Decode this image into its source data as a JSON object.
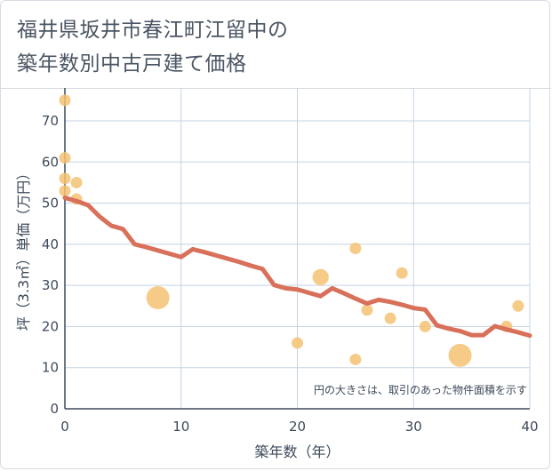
{
  "title_lines": [
    "福井県坂井市春江町江留中の",
    "築年数別中古戸建て価格"
  ],
  "note": "円の大きさは、取引のあった物件面積を示す",
  "colors": {
    "bubble": "#f5c273",
    "line": "#d8705a",
    "grid": "#c5d3e3",
    "axis": "#3d4a5a"
  },
  "chart_data": {
    "type": "scatter",
    "title": "福井県坂井市春江町江留中の築年数別中古戸建て価格",
    "xlabel": "築年数（年）",
    "ylabel": "坪（3.3㎡）単価（万円）",
    "xlim": [
      0,
      40
    ],
    "ylim": [
      0,
      78
    ],
    "xticks": [
      0,
      10,
      20,
      30,
      40
    ],
    "yticks": [
      0,
      10,
      20,
      30,
      40,
      50,
      60,
      70
    ],
    "grid": true,
    "series": [
      {
        "kind": "bubble",
        "points": [
          {
            "x": 0,
            "y": 75,
            "size": 1
          },
          {
            "x": 0,
            "y": 61,
            "size": 1
          },
          {
            "x": 0,
            "y": 56,
            "size": 1
          },
          {
            "x": 0,
            "y": 53,
            "size": 1
          },
          {
            "x": 1,
            "y": 55,
            "size": 1
          },
          {
            "x": 1,
            "y": 51,
            "size": 1
          },
          {
            "x": 8,
            "y": 27,
            "size": 4
          },
          {
            "x": 20,
            "y": 16,
            "size": 1
          },
          {
            "x": 22,
            "y": 32,
            "size": 2
          },
          {
            "x": 25,
            "y": 39,
            "size": 1
          },
          {
            "x": 25,
            "y": 12,
            "size": 1
          },
          {
            "x": 26,
            "y": 24,
            "size": 1
          },
          {
            "x": 28,
            "y": 22,
            "size": 1
          },
          {
            "x": 29,
            "y": 33,
            "size": 1
          },
          {
            "x": 31,
            "y": 20,
            "size": 1
          },
          {
            "x": 34,
            "y": 13,
            "size": 4
          },
          {
            "x": 38,
            "y": 20,
            "size": 1
          },
          {
            "x": 39,
            "y": 25,
            "size": 1
          }
        ]
      },
      {
        "kind": "line",
        "x": [
          0,
          1,
          2,
          3,
          4,
          5,
          6,
          7,
          8,
          9,
          10,
          11,
          12,
          13,
          14,
          15,
          16,
          17,
          18,
          19,
          20,
          21,
          22,
          23,
          24,
          25,
          26,
          27,
          28,
          29,
          30,
          31,
          32,
          33,
          34,
          35,
          36,
          37,
          38,
          39,
          40
        ],
        "y": [
          51.3,
          50.5,
          49.5,
          46.7,
          44.5,
          43.7,
          40,
          39.3,
          38.5,
          37.7,
          36.9,
          38.8,
          38.1,
          37.3,
          36.5,
          35.7,
          34.8,
          34,
          30.1,
          29.3,
          29,
          28.2,
          27.4,
          29.3,
          28.1,
          26.8,
          25.6,
          26.5,
          26,
          25.3,
          24.5,
          24.1,
          20.3,
          19.5,
          18.9,
          17.9,
          17.9,
          20.1,
          19.3,
          18.6,
          17.8
        ]
      }
    ]
  }
}
